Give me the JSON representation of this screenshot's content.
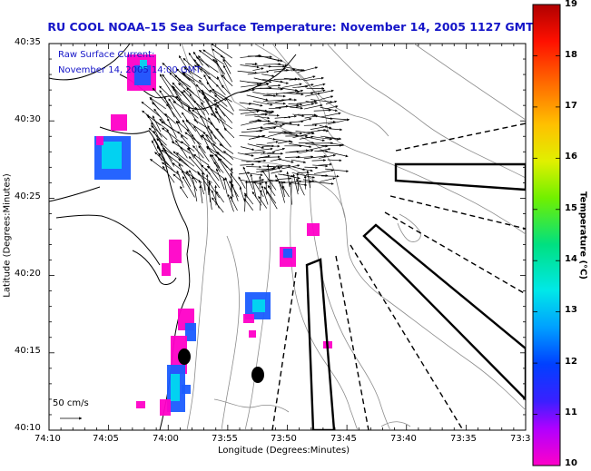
{
  "title": "RU COOL  NOAA–15  Sea Surface Temperature:  November 14, 2005 1127 GMT",
  "legend": {
    "line1": "Raw Surface Current:",
    "line2": "November 14, 2005 14:00 GMT"
  },
  "scale_label": "50 cm/s",
  "xaxis": {
    "label": "Longitude (Degrees:Minutes)",
    "ticks": [
      "74:10",
      "74:05",
      "74:00",
      "73:55",
      "73:50",
      "73:45",
      "73:40",
      "73:35",
      "73:3"
    ]
  },
  "yaxis": {
    "label": "Latitude (Degrees:Minutes)",
    "ticks": [
      "40:35",
      "40:30",
      "40:25",
      "40:20",
      "40:15",
      "40:10"
    ]
  },
  "colorbar": {
    "label": "Temperature (°C)",
    "ticks": [
      "19",
      "18",
      "17",
      "16",
      "15",
      "14",
      "13",
      "12",
      "11",
      "10"
    ]
  },
  "colors": {
    "title": "#1515c8",
    "land": "#ffffff",
    "ocean": "#ffffff",
    "coast": "#000000",
    "bathymetry": "#8c8c8c"
  }
}
